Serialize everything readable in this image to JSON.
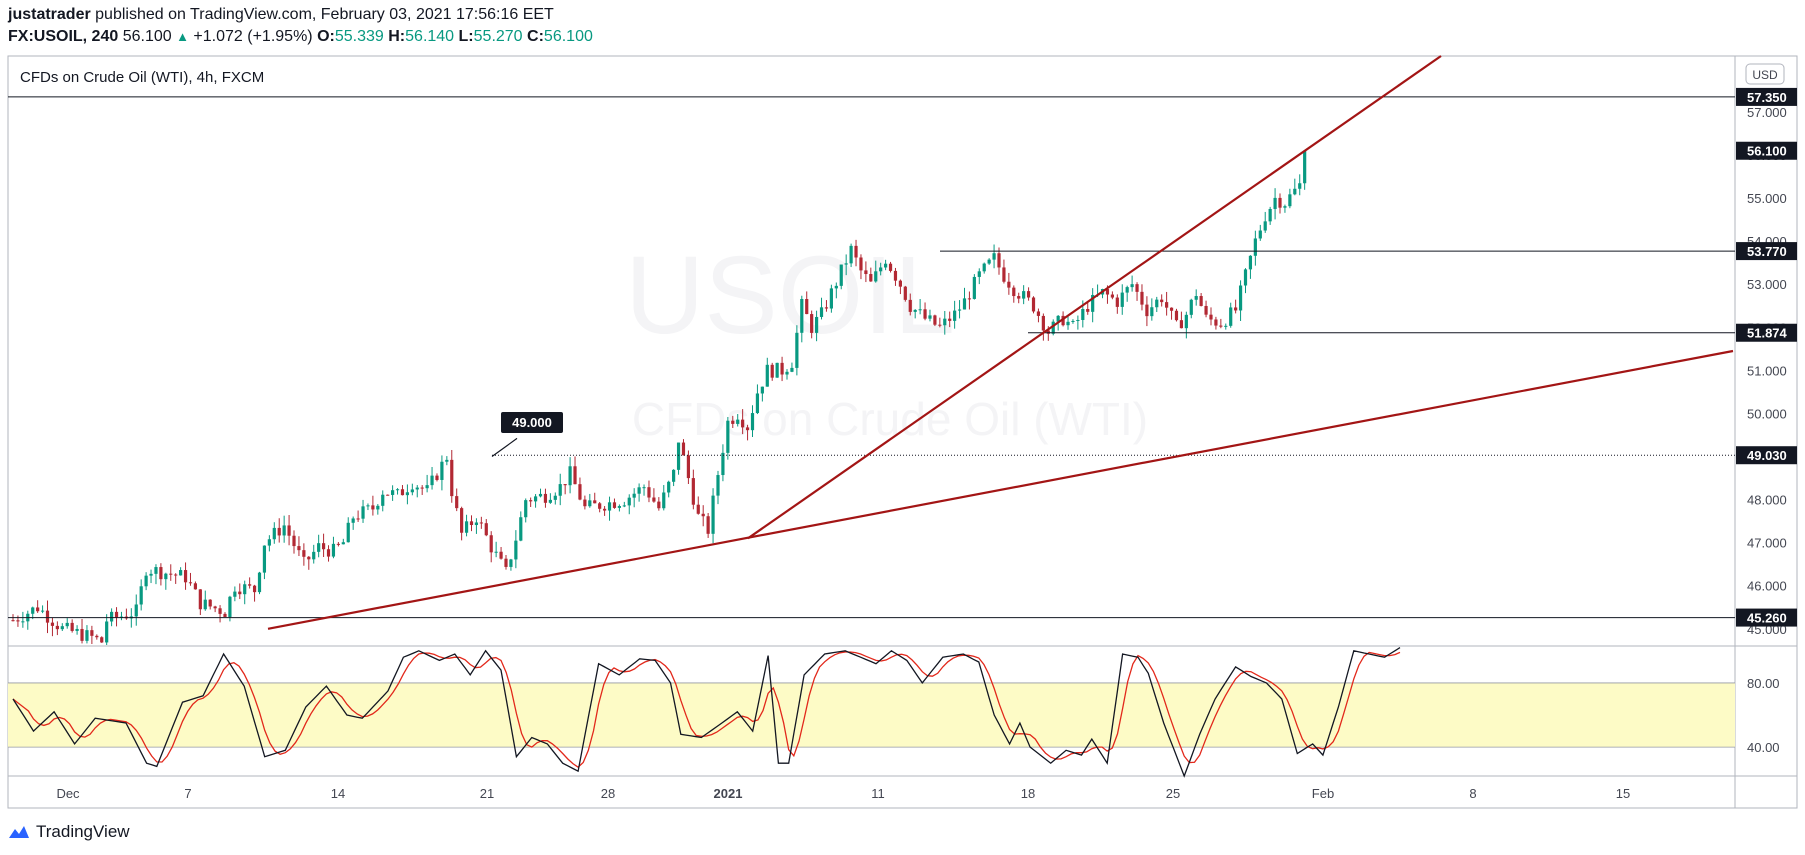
{
  "header": {
    "author": "justatrader",
    "published_text": "published on TradingView.com, February 03, 2021 17:56:16 EET",
    "symbol": "FX:USOIL, 240",
    "last": "56.100",
    "change": "+1.072 (+1.95%)",
    "open_label": "O:",
    "open": "55.339",
    "high_label": "H:",
    "high": "56.140",
    "low_label": "L:",
    "low": "55.270",
    "close_label": "C:",
    "close": "56.100"
  },
  "chart_data": {
    "type": "candlestick",
    "title": "CFDs on Crude Oil (WTI), 4h, FXCM",
    "watermark_symbol": "USOIL",
    "watermark_name": "CFDs on Crude Oil (WTI)",
    "currency": "USD",
    "x_tick_labels": [
      "Dec",
      "7",
      "14",
      "21",
      "28",
      "2021",
      "11",
      "18",
      "25",
      "Feb",
      "8",
      "15"
    ],
    "y_tick_labels": [
      45.0,
      46.0,
      47.0,
      48.0,
      49.0,
      50.0,
      51.0,
      52.0,
      53.0,
      54.0,
      55.0,
      56.0,
      57.0
    ],
    "ylim": [
      44.6,
      58.3
    ],
    "horizontal_levels": [
      {
        "label": "57.350",
        "value": 57.35
      },
      {
        "label": "56.100",
        "value": 56.1
      },
      {
        "label": "53.770",
        "value": 53.77
      },
      {
        "label": "51.874",
        "value": 51.874
      },
      {
        "label": "49.030",
        "value": 49.03
      },
      {
        "label": "45.260",
        "value": 45.26
      }
    ],
    "callout": {
      "label": "49.000",
      "value": 49.0
    },
    "oscillator": {
      "type": "stochastic",
      "levels": [
        "80.00",
        "40.00"
      ],
      "level_values": [
        80,
        40
      ],
      "ylim": [
        22,
        103
      ]
    }
  },
  "footer": {
    "brand": "TradingView"
  },
  "colors": {
    "up": "#089981",
    "down": "#b22833",
    "trendline": "#a31515",
    "band": "#fdfbc6",
    "k_line": "#131722",
    "d_line": "#e2281b"
  }
}
